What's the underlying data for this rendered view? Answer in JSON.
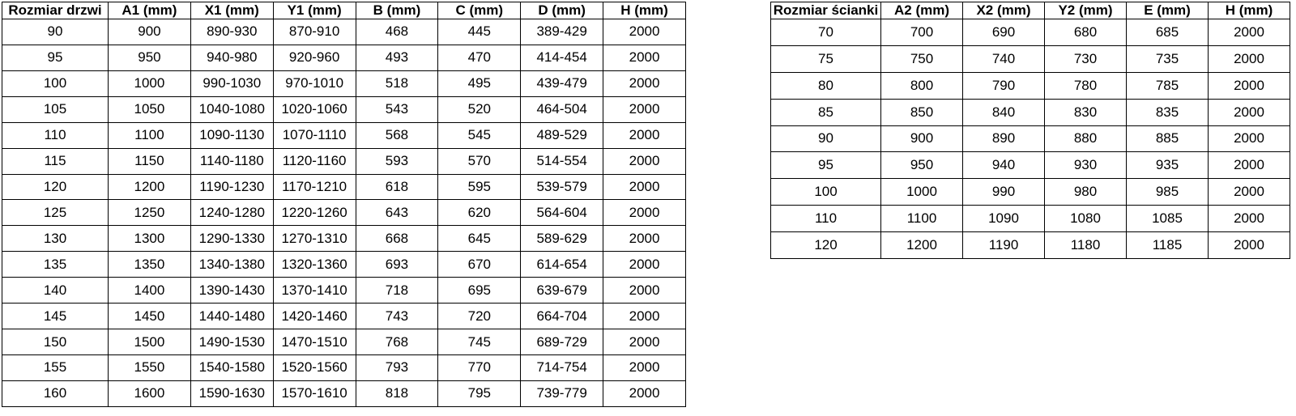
{
  "page": {
    "background_color": "#ffffff",
    "text_color": "#000000",
    "border_color": "#000000"
  },
  "door_table": {
    "headers": [
      "Rozmiar drzwi",
      "A1 (mm)",
      "X1 (mm)",
      "Y1 (mm)",
      "B (mm)",
      "C (mm)",
      "D (mm)",
      "H (mm)"
    ],
    "rows": [
      [
        "90",
        "900",
        "890-930",
        "870-910",
        "468",
        "445",
        "389-429",
        "2000"
      ],
      [
        "95",
        "950",
        "940-980",
        "920-960",
        "493",
        "470",
        "414-454",
        "2000"
      ],
      [
        "100",
        "1000",
        "990-1030",
        "970-1010",
        "518",
        "495",
        "439-479",
        "2000"
      ],
      [
        "105",
        "1050",
        "1040-1080",
        "1020-1060",
        "543",
        "520",
        "464-504",
        "2000"
      ],
      [
        "110",
        "1100",
        "1090-1130",
        "1070-1110",
        "568",
        "545",
        "489-529",
        "2000"
      ],
      [
        "115",
        "1150",
        "1140-1180",
        "1120-1160",
        "593",
        "570",
        "514-554",
        "2000"
      ],
      [
        "120",
        "1200",
        "1190-1230",
        "1170-1210",
        "618",
        "595",
        "539-579",
        "2000"
      ],
      [
        "125",
        "1250",
        "1240-1280",
        "1220-1260",
        "643",
        "620",
        "564-604",
        "2000"
      ],
      [
        "130",
        "1300",
        "1290-1330",
        "1270-1310",
        "668",
        "645",
        "589-629",
        "2000"
      ],
      [
        "135",
        "1350",
        "1340-1380",
        "1320-1360",
        "693",
        "670",
        "614-654",
        "2000"
      ],
      [
        "140",
        "1400",
        "1390-1430",
        "1370-1410",
        "718",
        "695",
        "639-679",
        "2000"
      ],
      [
        "145",
        "1450",
        "1440-1480",
        "1420-1460",
        "743",
        "720",
        "664-704",
        "2000"
      ],
      [
        "150",
        "1500",
        "1490-1530",
        "1470-1510",
        "768",
        "745",
        "689-729",
        "2000"
      ],
      [
        "155",
        "1550",
        "1540-1580",
        "1520-1560",
        "793",
        "770",
        "714-754",
        "2000"
      ],
      [
        "160",
        "1600",
        "1590-1630",
        "1570-1610",
        "818",
        "795",
        "739-779",
        "2000"
      ]
    ]
  },
  "wall_table": {
    "headers": [
      "Rozmiar ścianki",
      "A2 (mm)",
      "X2 (mm)",
      "Y2 (mm)",
      "E (mm)",
      "H (mm)"
    ],
    "rows": [
      [
        "70",
        "700",
        "690",
        "680",
        "685",
        "2000"
      ],
      [
        "75",
        "750",
        "740",
        "730",
        "735",
        "2000"
      ],
      [
        "80",
        "800",
        "790",
        "780",
        "785",
        "2000"
      ],
      [
        "85",
        "850",
        "840",
        "830",
        "835",
        "2000"
      ],
      [
        "90",
        "900",
        "890",
        "880",
        "885",
        "2000"
      ],
      [
        "95",
        "950",
        "940",
        "930",
        "935",
        "2000"
      ],
      [
        "100",
        "1000",
        "990",
        "980",
        "985",
        "2000"
      ],
      [
        "110",
        "1100",
        "1090",
        "1080",
        "1085",
        "2000"
      ],
      [
        "120",
        "1200",
        "1190",
        "1180",
        "1185",
        "2000"
      ]
    ]
  }
}
